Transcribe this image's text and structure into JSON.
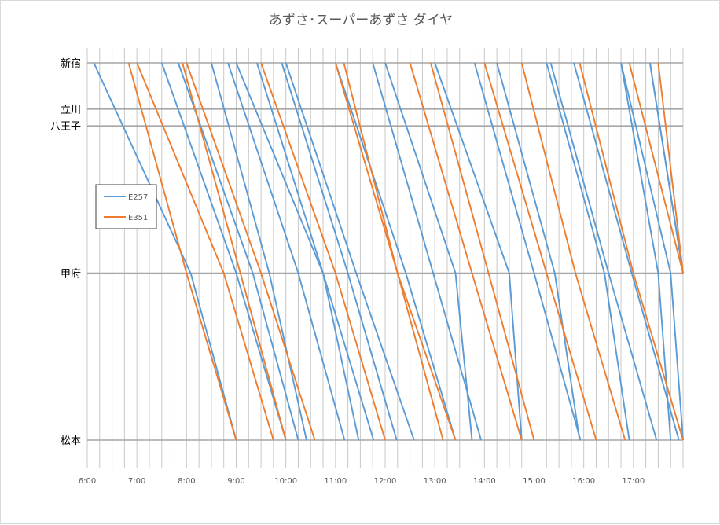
{
  "chart_data": {
    "type": "line",
    "title": "あずさ･スーパーあずさ ダイヤ",
    "xlabel": "",
    "ylabel": "",
    "xlim": [
      "6:00",
      "18:00"
    ],
    "x_ticks": [
      "6:00",
      "7:00",
      "8:00",
      "9:00",
      "10:00",
      "11:00",
      "12:00",
      "13:00",
      "14:00",
      "15:00",
      "16:00",
      "17:00"
    ],
    "minor_grid_minutes": 15,
    "grid": true,
    "legend_position": "left",
    "stations": [
      {
        "name": "新宿",
        "km": 0
      },
      {
        "name": "立川",
        "km": 27.2
      },
      {
        "name": "八王子",
        "km": 37.1
      },
      {
        "name": "甲府",
        "km": 123.8
      },
      {
        "name": "松本",
        "km": 222.1
      }
    ],
    "colors": {
      "E257": "#5b9bd5",
      "E351": "#ed7d31"
    },
    "series": [
      {
        "name": "E257",
        "color": "#5b9bd5",
        "trains": [
          {
            "direction": "up",
            "times": [
              "6:08",
              null,
              null,
              "8:05",
              "9:00"
            ]
          },
          {
            "direction": "up",
            "times": [
              "7:50",
              null,
              null,
              "9:20",
              "10:15"
            ]
          },
          {
            "direction": "up",
            "times": [
              "8:50",
              null,
              null,
              "10:15",
              "11:11"
            ]
          },
          {
            "direction": "up",
            "times": [
              "9:25",
              null,
              null,
              "10:45",
              "11:46"
            ]
          },
          {
            "direction": "up",
            "times": [
              "9:55",
              null,
              null,
              "11:15",
              "12:14"
            ]
          },
          {
            "direction": "up",
            "times": [
              "11:45",
              null,
              null,
              "12:58",
              "13:56"
            ]
          },
          {
            "direction": "up",
            "times": [
              "13:48",
              null,
              null,
              "15:00",
              "15:56"
            ]
          },
          {
            "direction": "up",
            "times": [
              "15:20",
              null,
              null,
              "16:30",
              "17:28"
            ]
          },
          {
            "direction": "up",
            "times": [
              "15:48",
              null,
              null,
              "16:58",
              "17:55"
            ]
          },
          {
            "direction": "up",
            "times": [
              "16:45",
              null,
              null,
              "17:45",
              "18:00"
            ]
          },
          {
            "direction": "up",
            "times": [
              "17:20",
              null,
              null,
              "18:00",
              null
            ]
          },
          {
            "direction": "down",
            "times": [
              "7:30",
              null,
              null,
              "9:00",
              "10:00"
            ]
          },
          {
            "direction": "down",
            "times": [
              "8:30",
              null,
              null,
              "9:40",
              "10:25"
            ]
          },
          {
            "direction": "down",
            "times": [
              "9:00",
              null,
              null,
              "10:45",
              "11:28"
            ]
          },
          {
            "direction": "down",
            "times": [
              "10:00",
              null,
              null,
              "11:25",
              "12:35"
            ]
          },
          {
            "direction": "down",
            "times": [
              "11:00",
              null,
              null,
              "12:25",
              "13:25"
            ]
          },
          {
            "direction": "down",
            "times": [
              "12:00",
              null,
              null,
              "13:25",
              "13:45"
            ]
          },
          {
            "direction": "down",
            "times": [
              "13:00",
              null,
              null,
              "14:30",
              "14:45"
            ]
          },
          {
            "direction": "down",
            "times": [
              "14:15",
              null,
              null,
              "15:25",
              "15:55"
            ]
          },
          {
            "direction": "down",
            "times": [
              "15:15",
              null,
              null,
              "16:25",
              "16:55"
            ]
          },
          {
            "direction": "down",
            "times": [
              "16:45",
              null,
              null,
              "17:30",
              "17:45"
            ]
          },
          {
            "direction": "down",
            "times": [
              "17:20",
              null,
              null,
              "18:00",
              null
            ]
          }
        ]
      },
      {
        "name": "E351",
        "color": "#ed7d31",
        "trains": [
          {
            "direction": "up",
            "times": [
              "6:50",
              null,
              null,
              "8:00",
              "9:00"
            ]
          },
          {
            "direction": "up",
            "times": [
              "7:55",
              null,
              null,
              "9:05",
              "10:00"
            ]
          },
          {
            "direction": "up",
            "times": [
              "11:10",
              null,
              null,
              "12:15",
              "13:10"
            ]
          },
          {
            "direction": "up",
            "times": [
              "12:55",
              null,
              null,
              "14:05",
              "15:00"
            ]
          },
          {
            "direction": "up",
            "times": [
              "14:45",
              null,
              null,
              "15:50",
              "16:50"
            ]
          },
          {
            "direction": "up",
            "times": [
              "16:55",
              null,
              null,
              "18:00",
              null
            ]
          },
          {
            "direction": "down",
            "times": [
              "7:00",
              null,
              null,
              "8:45",
              "9:45"
            ]
          },
          {
            "direction": "down",
            "times": [
              "8:00",
              null,
              null,
              "9:30",
              "10:35"
            ]
          },
          {
            "direction": "down",
            "times": [
              "9:30",
              null,
              null,
              "11:00",
              "12:00"
            ]
          },
          {
            "direction": "down",
            "times": [
              "11:00",
              null,
              null,
              "12:15",
              "13:25"
            ]
          },
          {
            "direction": "down",
            "times": [
              "12:30",
              null,
              null,
              "13:45",
              "14:45"
            ]
          },
          {
            "direction": "down",
            "times": [
              "14:00",
              null,
              null,
              "15:15",
              "16:15"
            ]
          },
          {
            "direction": "down",
            "times": [
              "15:55",
              null,
              null,
              "17:00",
              "18:00"
            ]
          },
          {
            "direction": "down",
            "times": [
              "17:30",
              null,
              null,
              "18:00",
              null
            ]
          }
        ]
      }
    ]
  }
}
